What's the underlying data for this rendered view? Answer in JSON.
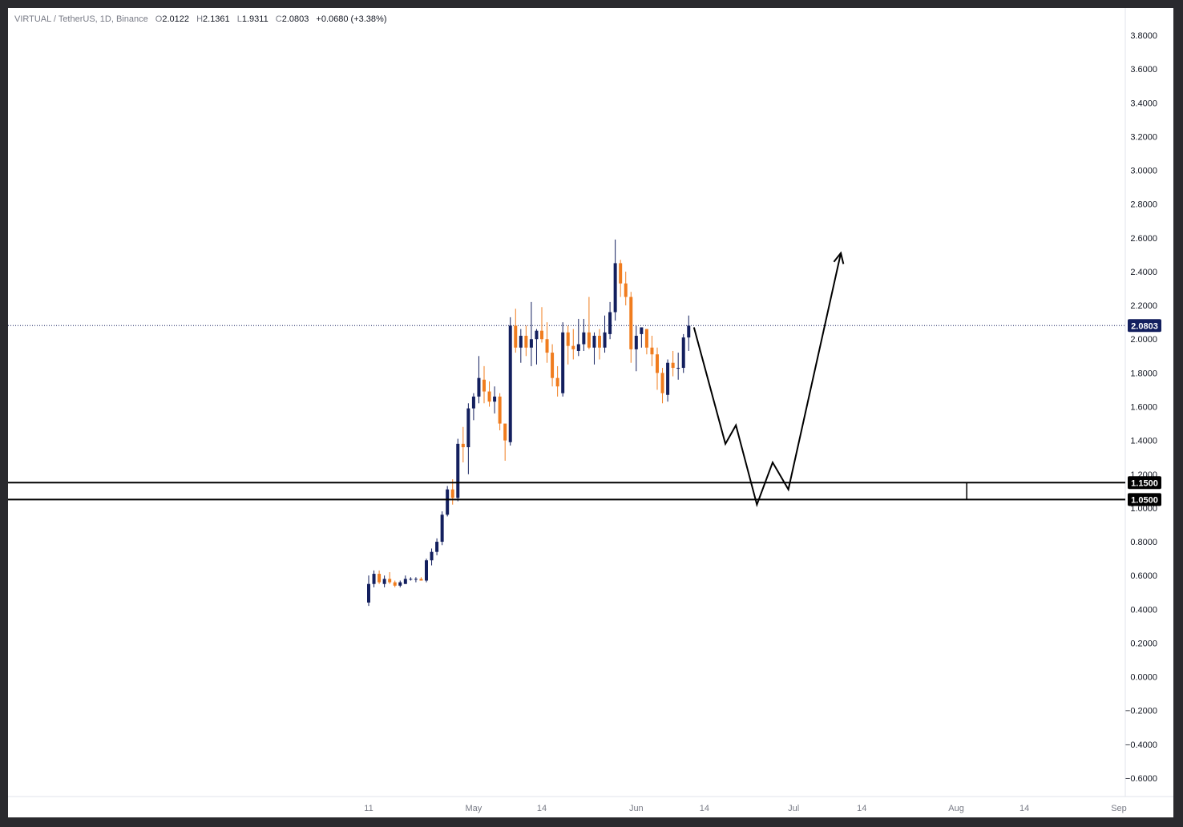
{
  "header": {
    "symbol": "VIRTUAL / TetherUS, 1D, Binance",
    "o_label": "O",
    "o_value": "2.0122",
    "h_label": "H",
    "h_value": "2.1361",
    "l_label": "L",
    "l_value": "1.9311",
    "c_label": "C",
    "c_value": "2.0803",
    "change": "+0.0680 (+3.38%)"
  },
  "colors": {
    "up": "#131f5e",
    "down": "#f07c1e",
    "last_price_tag": "#131f5e",
    "level_tag": "#000000",
    "axis_text": "#131722",
    "time_text": "#787b86"
  },
  "chart_data": {
    "type": "candlestick",
    "ylim": [
      -0.7,
      3.9
    ],
    "y_ticks": [
      "3.8000",
      "3.6000",
      "3.4000",
      "3.2000",
      "3.0000",
      "2.8000",
      "2.6000",
      "2.4000",
      "2.2000",
      "2.0000",
      "1.8000",
      "1.6000",
      "1.4000",
      "1.2000",
      "1.0000",
      "0.8000",
      "0.6000",
      "0.4000",
      "0.2000",
      "0.0000",
      "−0.2000",
      "−0.4000",
      "−0.6000"
    ],
    "y_tick_values": [
      3.8,
      3.6,
      3.4,
      3.2,
      3.0,
      2.8,
      2.6,
      2.4,
      2.2,
      2.0,
      1.8,
      1.6,
      1.4,
      1.2,
      1.0,
      0.8,
      0.6,
      0.4,
      0.2,
      0.0,
      -0.2,
      -0.4,
      -0.6
    ],
    "x_ticks": [
      {
        "label": "11",
        "date": "2025-04-11"
      },
      {
        "label": "May",
        "date": "2025-05-01"
      },
      {
        "label": "14",
        "date": "2025-05-14"
      },
      {
        "label": "Jun",
        "date": "2025-06-01"
      },
      {
        "label": "14",
        "date": "2025-06-14"
      },
      {
        "label": "Jul",
        "date": "2025-07-01"
      },
      {
        "label": "14",
        "date": "2025-07-14"
      },
      {
        "label": "Aug",
        "date": "2025-08-01"
      },
      {
        "label": "14",
        "date": "2025-08-14"
      },
      {
        "label": "Sep",
        "date": "2025-09-01"
      }
    ],
    "candles": [
      {
        "date": "2025-04-11",
        "o": 0.44,
        "h": 0.6,
        "l": 0.42,
        "c": 0.55
      },
      {
        "date": "2025-04-12",
        "o": 0.55,
        "h": 0.63,
        "l": 0.53,
        "c": 0.61
      },
      {
        "date": "2025-04-13",
        "o": 0.61,
        "h": 0.63,
        "l": 0.55,
        "c": 0.56
      },
      {
        "date": "2025-04-14",
        "o": 0.55,
        "h": 0.6,
        "l": 0.53,
        "c": 0.58
      },
      {
        "date": "2025-04-15",
        "o": 0.58,
        "h": 0.62,
        "l": 0.55,
        "c": 0.56
      },
      {
        "date": "2025-04-16",
        "o": 0.56,
        "h": 0.57,
        "l": 0.53,
        "c": 0.54
      },
      {
        "date": "2025-04-17",
        "o": 0.54,
        "h": 0.57,
        "l": 0.53,
        "c": 0.56
      },
      {
        "date": "2025-04-18",
        "o": 0.55,
        "h": 0.6,
        "l": 0.55,
        "c": 0.58
      },
      {
        "date": "2025-04-19",
        "o": 0.58,
        "h": 0.59,
        "l": 0.57,
        "c": 0.58
      },
      {
        "date": "2025-04-20",
        "o": 0.58,
        "h": 0.59,
        "l": 0.56,
        "c": 0.58
      },
      {
        "date": "2025-04-21",
        "o": 0.58,
        "h": 0.59,
        "l": 0.57,
        "c": 0.57
      },
      {
        "date": "2025-04-22",
        "o": 0.57,
        "h": 0.7,
        "l": 0.56,
        "c": 0.69
      },
      {
        "date": "2025-04-23",
        "o": 0.69,
        "h": 0.76,
        "l": 0.66,
        "c": 0.74
      },
      {
        "date": "2025-04-24",
        "o": 0.74,
        "h": 0.82,
        "l": 0.72,
        "c": 0.8
      },
      {
        "date": "2025-04-25",
        "o": 0.8,
        "h": 0.98,
        "l": 0.78,
        "c": 0.96
      },
      {
        "date": "2025-04-26",
        "o": 0.96,
        "h": 1.13,
        "l": 0.95,
        "c": 1.11
      },
      {
        "date": "2025-04-27",
        "o": 1.11,
        "h": 1.17,
        "l": 1.02,
        "c": 1.06
      },
      {
        "date": "2025-04-28",
        "o": 1.06,
        "h": 1.41,
        "l": 1.04,
        "c": 1.38
      },
      {
        "date": "2025-04-29",
        "o": 1.38,
        "h": 1.48,
        "l": 1.27,
        "c": 1.36
      },
      {
        "date": "2025-04-30",
        "o": 1.36,
        "h": 1.62,
        "l": 1.2,
        "c": 1.59
      },
      {
        "date": "2025-05-01",
        "o": 1.59,
        "h": 1.68,
        "l": 1.52,
        "c": 1.66
      },
      {
        "date": "2025-05-02",
        "o": 1.66,
        "h": 1.9,
        "l": 1.62,
        "c": 1.77
      },
      {
        "date": "2025-05-03",
        "o": 1.76,
        "h": 1.84,
        "l": 1.62,
        "c": 1.69
      },
      {
        "date": "2025-05-04",
        "o": 1.69,
        "h": 1.75,
        "l": 1.6,
        "c": 1.63
      },
      {
        "date": "2025-05-05",
        "o": 1.63,
        "h": 1.72,
        "l": 1.56,
        "c": 1.66
      },
      {
        "date": "2025-05-06",
        "o": 1.66,
        "h": 1.68,
        "l": 1.46,
        "c": 1.5
      },
      {
        "date": "2025-05-07",
        "o": 1.5,
        "h": 1.48,
        "l": 1.28,
        "c": 1.4
      },
      {
        "date": "2025-05-08",
        "o": 1.39,
        "h": 2.13,
        "l": 1.37,
        "c": 2.08
      },
      {
        "date": "2025-05-09",
        "o": 2.08,
        "h": 2.18,
        "l": 1.92,
        "c": 1.95
      },
      {
        "date": "2025-05-10",
        "o": 1.95,
        "h": 2.06,
        "l": 1.86,
        "c": 2.02
      },
      {
        "date": "2025-05-11",
        "o": 2.02,
        "h": 2.08,
        "l": 1.9,
        "c": 1.95
      },
      {
        "date": "2025-05-12",
        "o": 1.95,
        "h": 2.22,
        "l": 1.84,
        "c": 2.0
      },
      {
        "date": "2025-05-13",
        "o": 2.0,
        "h": 2.06,
        "l": 1.85,
        "c": 2.05
      },
      {
        "date": "2025-05-14",
        "o": 2.05,
        "h": 2.19,
        "l": 1.98,
        "c": 2.0
      },
      {
        "date": "2025-05-15",
        "o": 2.0,
        "h": 2.1,
        "l": 1.86,
        "c": 1.92
      },
      {
        "date": "2025-05-16",
        "o": 1.92,
        "h": 1.97,
        "l": 1.72,
        "c": 1.77
      },
      {
        "date": "2025-05-17",
        "o": 1.77,
        "h": 1.84,
        "l": 1.66,
        "c": 1.72
      },
      {
        "date": "2025-05-18",
        "o": 1.68,
        "h": 2.1,
        "l": 1.66,
        "c": 2.04
      },
      {
        "date": "2025-05-19",
        "o": 2.04,
        "h": 2.08,
        "l": 1.85,
        "c": 1.96
      },
      {
        "date": "2025-05-20",
        "o": 1.96,
        "h": 2.06,
        "l": 1.88,
        "c": 1.94
      },
      {
        "date": "2025-05-21",
        "o": 1.93,
        "h": 2.12,
        "l": 1.9,
        "c": 1.97
      },
      {
        "date": "2025-05-22",
        "o": 1.97,
        "h": 2.12,
        "l": 1.93,
        "c": 2.04
      },
      {
        "date": "2025-05-23",
        "o": 2.04,
        "h": 2.25,
        "l": 1.94,
        "c": 1.95
      },
      {
        "date": "2025-05-24",
        "o": 1.95,
        "h": 2.04,
        "l": 1.85,
        "c": 2.02
      },
      {
        "date": "2025-05-25",
        "o": 2.02,
        "h": 2.06,
        "l": 1.88,
        "c": 1.95
      },
      {
        "date": "2025-05-26",
        "o": 1.95,
        "h": 2.14,
        "l": 1.92,
        "c": 2.04
      },
      {
        "date": "2025-05-27",
        "o": 2.03,
        "h": 2.22,
        "l": 2.0,
        "c": 2.16
      },
      {
        "date": "2025-05-28",
        "o": 2.16,
        "h": 2.59,
        "l": 2.11,
        "c": 2.45
      },
      {
        "date": "2025-05-29",
        "o": 2.45,
        "h": 2.47,
        "l": 2.25,
        "c": 2.33
      },
      {
        "date": "2025-05-30",
        "o": 2.33,
        "h": 2.4,
        "l": 2.2,
        "c": 2.25
      },
      {
        "date": "2025-05-31",
        "o": 2.25,
        "h": 2.28,
        "l": 1.86,
        "c": 1.94
      },
      {
        "date": "2025-06-01",
        "o": 1.94,
        "h": 2.08,
        "l": 1.81,
        "c": 2.02
      },
      {
        "date": "2025-06-02",
        "o": 2.03,
        "h": 2.07,
        "l": 1.95,
        "c": 2.07
      },
      {
        "date": "2025-06-03",
        "o": 2.06,
        "h": 2.06,
        "l": 1.91,
        "c": 1.95
      },
      {
        "date": "2025-06-04",
        "o": 1.95,
        "h": 2.02,
        "l": 1.84,
        "c": 1.91
      },
      {
        "date": "2025-06-05",
        "o": 1.91,
        "h": 1.95,
        "l": 1.7,
        "c": 1.8
      },
      {
        "date": "2025-06-06",
        "o": 1.8,
        "h": 1.83,
        "l": 1.62,
        "c": 1.68
      },
      {
        "date": "2025-06-07",
        "o": 1.67,
        "h": 1.88,
        "l": 1.63,
        "c": 1.86
      },
      {
        "date": "2025-06-08",
        "o": 1.86,
        "h": 1.93,
        "l": 1.78,
        "c": 1.83
      },
      {
        "date": "2025-06-09",
        "o": 1.83,
        "h": 1.92,
        "l": 1.76,
        "c": 1.83
      },
      {
        "date": "2025-06-10",
        "o": 1.83,
        "h": 2.03,
        "l": 1.8,
        "c": 2.01
      },
      {
        "date": "2025-06-11",
        "o": 2.01,
        "h": 2.14,
        "l": 1.93,
        "c": 2.08
      }
    ],
    "projection_path": [
      {
        "date": "2025-06-12",
        "y": 2.07
      },
      {
        "date": "2025-06-18",
        "y": 1.38
      },
      {
        "date": "2025-06-20",
        "y": 1.49
      },
      {
        "date": "2025-06-24",
        "y": 1.02
      },
      {
        "date": "2025-06-27",
        "y": 1.27
      },
      {
        "date": "2025-06-30",
        "y": 1.11
      },
      {
        "date": "2025-07-10",
        "y": 2.51
      }
    ],
    "levels": [
      {
        "value": 1.15,
        "label": "1.1500",
        "start": "2025-04-01"
      },
      {
        "value": 1.05,
        "label": "1.0500",
        "start": "2025-04-01"
      }
    ],
    "range_marker_date": "2025-08-03",
    "last_price": {
      "value": 2.0803,
      "label": "2.0803"
    }
  }
}
